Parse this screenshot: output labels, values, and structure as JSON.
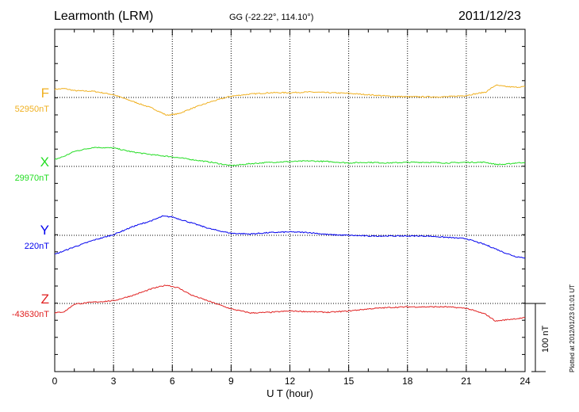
{
  "header": {
    "station": "Learmonth (LRM)",
    "coords": "GG (-22.22°, 114.10°)",
    "date": "2011/12/23"
  },
  "side_note": "Plotted at 2012/01/23 01:01 UT",
  "scale_bar": {
    "label": "100 nT",
    "nT": 100
  },
  "chart_data": {
    "type": "line",
    "title": "Learmonth (LRM)",
    "xlabel": "U T (hour)",
    "xlim": [
      0,
      24
    ],
    "xticks": [
      "0",
      "3",
      "6",
      "9",
      "12",
      "15",
      "18",
      "21",
      "24"
    ],
    "grid": true,
    "series": [
      {
        "name": "F",
        "baseline_label": "52950nT",
        "baseline_nT": 52950,
        "color": "#f0b020",
        "points": [
          [
            0,
            12
          ],
          [
            0.5,
            13
          ],
          [
            1,
            10
          ],
          [
            2,
            9
          ],
          [
            3,
            4
          ],
          [
            4,
            -6
          ],
          [
            5,
            -16
          ],
          [
            5.7,
            -26
          ],
          [
            6.3,
            -24
          ],
          [
            7,
            -16
          ],
          [
            8,
            -6
          ],
          [
            9,
            2
          ],
          [
            10,
            5
          ],
          [
            11,
            7
          ],
          [
            12,
            7
          ],
          [
            13,
            8
          ],
          [
            14,
            7
          ],
          [
            15,
            6
          ],
          [
            16,
            4
          ],
          [
            17,
            2
          ],
          [
            18,
            1
          ],
          [
            19,
            1
          ],
          [
            20,
            1
          ],
          [
            21,
            3
          ],
          [
            22,
            8
          ],
          [
            22.5,
            18
          ],
          [
            23,
            16
          ],
          [
            23.5,
            15
          ],
          [
            24,
            16
          ]
        ]
      },
      {
        "name": "X",
        "baseline_label": "29970nT",
        "baseline_nT": 29970,
        "color": "#22dd22",
        "points": [
          [
            0,
            10
          ],
          [
            0.5,
            15
          ],
          [
            1,
            22
          ],
          [
            2,
            28
          ],
          [
            3,
            27
          ],
          [
            4,
            21
          ],
          [
            5,
            17
          ],
          [
            6,
            14
          ],
          [
            7,
            10
          ],
          [
            8,
            6
          ],
          [
            9,
            1
          ],
          [
            10,
            4
          ],
          [
            11,
            6
          ],
          [
            12,
            7
          ],
          [
            13,
            8
          ],
          [
            14,
            7
          ],
          [
            15,
            5
          ],
          [
            16,
            6
          ],
          [
            17,
            5
          ],
          [
            18,
            6
          ],
          [
            19,
            6
          ],
          [
            20,
            5
          ],
          [
            21,
            6
          ],
          [
            22,
            6
          ],
          [
            22.5,
            3
          ],
          [
            23,
            3
          ],
          [
            23.5,
            5
          ],
          [
            24,
            6
          ]
        ]
      },
      {
        "name": "Y",
        "baseline_label": "220nT",
        "baseline_nT": 220,
        "color": "#0000ee",
        "points": [
          [
            0,
            -28
          ],
          [
            1,
            -17
          ],
          [
            2,
            -7
          ],
          [
            3,
            1
          ],
          [
            4,
            13
          ],
          [
            5,
            22
          ],
          [
            5.5,
            28
          ],
          [
            6,
            27
          ],
          [
            7,
            18
          ],
          [
            8,
            9
          ],
          [
            9,
            3
          ],
          [
            10,
            2
          ],
          [
            11,
            4
          ],
          [
            12,
            5
          ],
          [
            13,
            4
          ],
          [
            14,
            1
          ],
          [
            15,
            0
          ],
          [
            16,
            -1
          ],
          [
            17,
            -1
          ],
          [
            18,
            -1
          ],
          [
            19,
            -1
          ],
          [
            20,
            -3
          ],
          [
            21,
            -5
          ],
          [
            22,
            -14
          ],
          [
            23,
            -26
          ],
          [
            23.5,
            -31
          ],
          [
            24,
            -33
          ]
        ]
      },
      {
        "name": "Z",
        "baseline_label": "-43630nT",
        "baseline_nT": -43630,
        "color": "#e02020",
        "points": [
          [
            0,
            -14
          ],
          [
            0.5,
            -12
          ],
          [
            1,
            -1
          ],
          [
            2,
            2
          ],
          [
            3,
            4
          ],
          [
            4,
            12
          ],
          [
            5,
            22
          ],
          [
            5.7,
            27
          ],
          [
            6.3,
            23
          ],
          [
            7,
            12
          ],
          [
            8,
            2
          ],
          [
            9,
            -8
          ],
          [
            10,
            -14
          ],
          [
            11,
            -13
          ],
          [
            12,
            -11
          ],
          [
            13,
            -12
          ],
          [
            14,
            -13
          ],
          [
            15,
            -11
          ],
          [
            16,
            -8
          ],
          [
            17,
            -6
          ],
          [
            18,
            -5
          ],
          [
            19,
            -5
          ],
          [
            20,
            -5
          ],
          [
            21,
            -7
          ],
          [
            22,
            -16
          ],
          [
            22.5,
            -26
          ],
          [
            23,
            -24
          ],
          [
            24,
            -21
          ]
        ]
      }
    ]
  }
}
